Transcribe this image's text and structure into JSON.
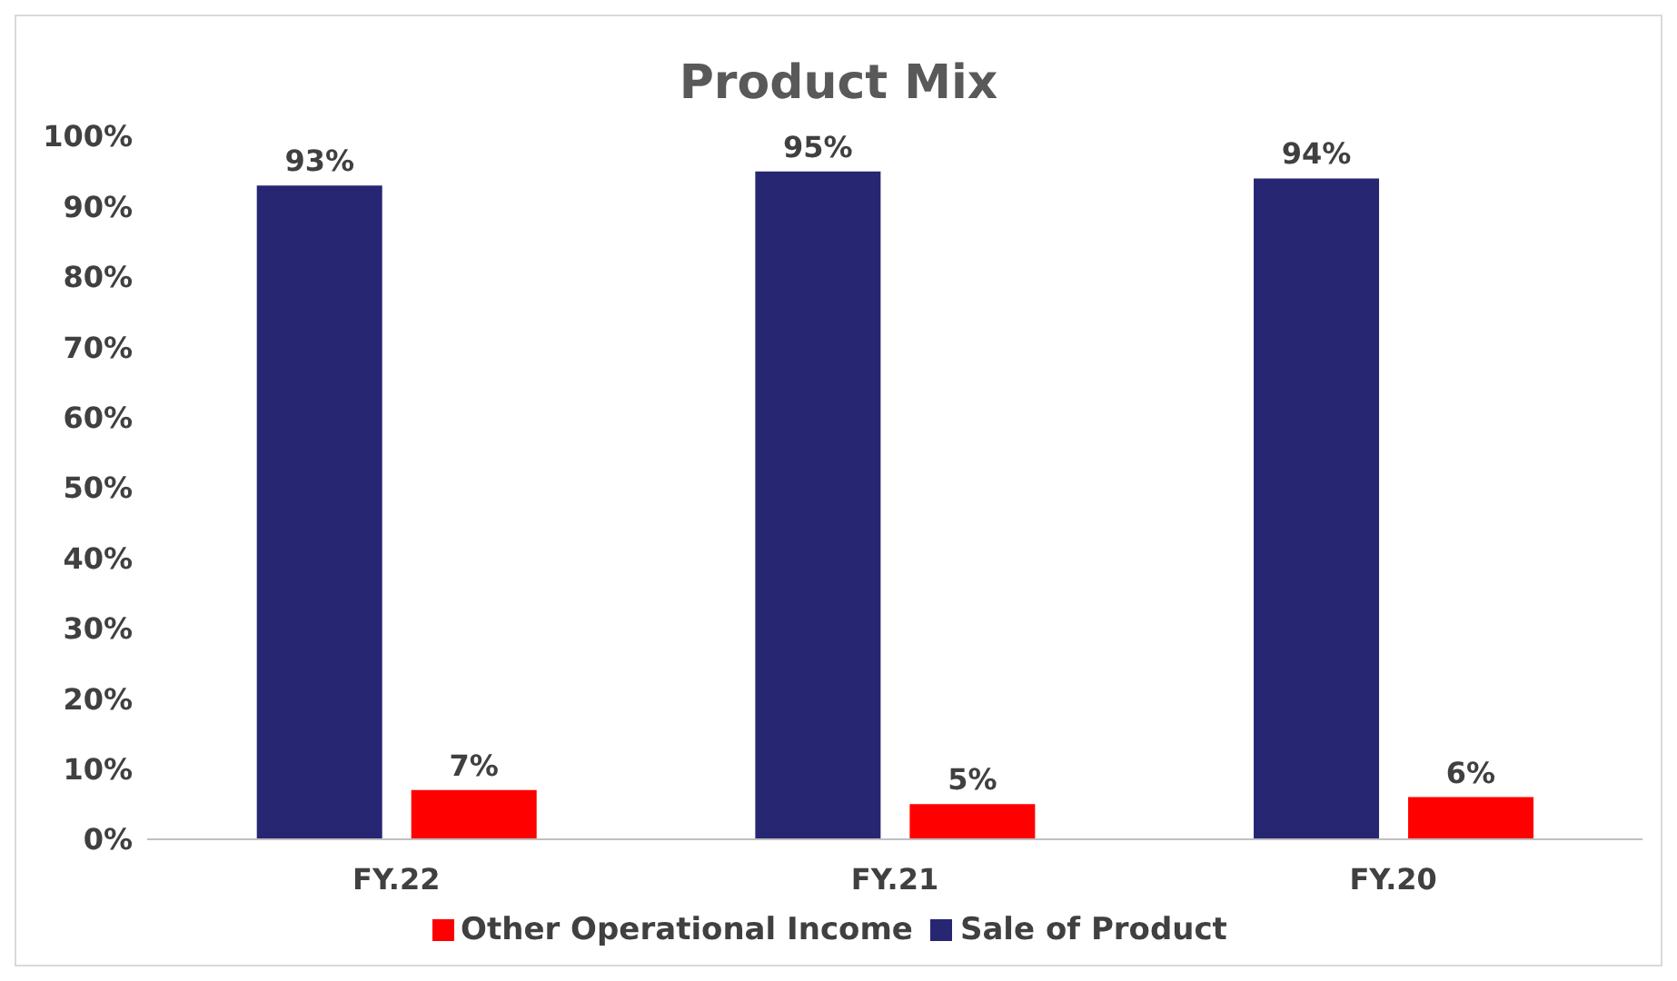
{
  "chart_data": {
    "type": "bar",
    "title": "Product Mix",
    "categories": [
      "FY.22",
      "FY.21",
      "FY.20"
    ],
    "series": [
      {
        "name": "Sale of Product",
        "color": "#262673",
        "values": [
          93,
          95,
          94
        ],
        "value_labels": [
          "93%",
          "95%",
          "94%"
        ]
      },
      {
        "name": "Other Operational Income",
        "color": "#ff0000",
        "values": [
          7,
          5,
          6
        ],
        "value_labels": [
          "7%",
          "5%",
          "6%"
        ]
      }
    ],
    "ylim": [
      0,
      100
    ],
    "yticks": [
      {
        "value": 0,
        "label": "0%"
      },
      {
        "value": 10,
        "label": "10%"
      },
      {
        "value": 20,
        "label": "20%"
      },
      {
        "value": 30,
        "label": "30%"
      },
      {
        "value": 40,
        "label": "40%"
      },
      {
        "value": 50,
        "label": "50%"
      },
      {
        "value": 60,
        "label": "60%"
      },
      {
        "value": 70,
        "label": "70%"
      },
      {
        "value": 80,
        "label": "80%"
      },
      {
        "value": 90,
        "label": "90%"
      },
      {
        "value": 100,
        "label": "100%"
      }
    ],
    "grid": false,
    "legend": "bottom"
  }
}
